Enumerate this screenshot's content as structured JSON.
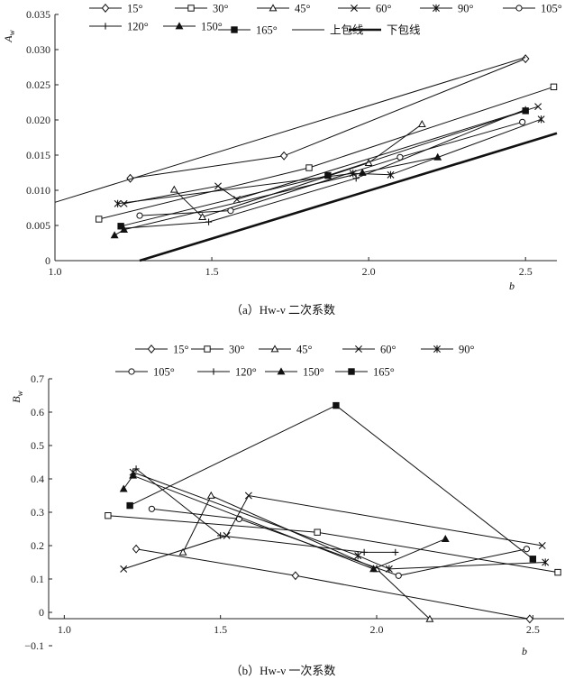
{
  "chart_data": [
    {
      "type": "line",
      "caption": "（a）Hw-ν 二次系数",
      "ylabel": "Aw",
      "xlabel": "b",
      "xlim": [
        1.0,
        2.6
      ],
      "ylim": [
        0,
        0.035
      ],
      "xticks": [
        "1.0",
        "1.5",
        "2.0",
        "2.5"
      ],
      "yticks": [
        "0",
        "0.005",
        "0.010",
        "0.015",
        "0.020",
        "0.025",
        "0.030",
        "0.035"
      ],
      "series": [
        {
          "name": "15°",
          "marker": "diamond",
          "points": [
            [
              1.24,
              0.0117
            ],
            [
              1.73,
              0.0149
            ],
            [
              2.5,
              0.0287
            ]
          ]
        },
        {
          "name": "30°",
          "marker": "square",
          "points": [
            [
              1.14,
              0.0059
            ],
            [
              1.81,
              0.0132
            ],
            [
              2.59,
              0.0247
            ]
          ]
        },
        {
          "name": "45°",
          "marker": "triangle",
          "points": [
            [
              1.38,
              0.0101
            ],
            [
              1.47,
              0.0062
            ],
            [
              2.0,
              0.0139
            ],
            [
              2.17,
              0.0194
            ]
          ]
        },
        {
          "name": "60°",
          "marker": "x",
          "points": [
            [
              1.22,
              0.0081
            ],
            [
              1.52,
              0.0106
            ],
            [
              1.58,
              0.0087
            ],
            [
              2.54,
              0.0219
            ]
          ]
        },
        {
          "name": "90°",
          "marker": "asterisk",
          "points": [
            [
              1.2,
              0.0081
            ],
            [
              1.95,
              0.0124
            ],
            [
              2.07,
              0.0122
            ],
            [
              2.55,
              0.0201
            ]
          ]
        },
        {
          "name": "105°",
          "marker": "circle",
          "points": [
            [
              1.27,
              0.0064
            ],
            [
              1.56,
              0.0071
            ],
            [
              2.1,
              0.0147
            ],
            [
              2.49,
              0.0197
            ]
          ]
        },
        {
          "name": "120°",
          "marker": "plus",
          "points": [
            [
              1.22,
              0.0046
            ],
            [
              1.49,
              0.0055
            ],
            [
              1.96,
              0.0117
            ],
            [
              2.5,
              0.0215
            ]
          ]
        },
        {
          "name": "150°",
          "marker": "triangle-filled",
          "points": [
            [
              1.19,
              0.0036
            ],
            [
              1.22,
              0.0044
            ],
            [
              1.98,
              0.0125
            ],
            [
              2.22,
              0.0147
            ]
          ]
        },
        {
          "name": "165°",
          "marker": "square-filled",
          "points": [
            [
              1.21,
              0.0049
            ],
            [
              1.87,
              0.0121
            ],
            [
              2.5,
              0.0213
            ]
          ]
        },
        {
          "name": "上包线",
          "marker": "none",
          "style": "thin",
          "points": [
            [
              1.0,
              0.0083
            ],
            [
              2.5,
              0.0289
            ]
          ]
        },
        {
          "name": "下包线",
          "marker": "none",
          "style": "thick",
          "points": [
            [
              1.27,
              0.0
            ],
            [
              2.6,
              0.0181
            ]
          ]
        }
      ]
    },
    {
      "type": "line",
      "caption": "（b）Hw-ν 一次系数",
      "ylabel": "Bw",
      "xlabel": "b",
      "xlim": [
        0.95,
        2.6
      ],
      "ylim": [
        -0.1,
        0.7
      ],
      "xticks": [
        "1.0",
        "1.5",
        "2.0",
        "2.5"
      ],
      "yticks": [
        "−0.1",
        "0",
        "0.1",
        "0.2",
        "0.3",
        "0.4",
        "0.5",
        "0.6",
        "0.7"
      ],
      "series": [
        {
          "name": "15°",
          "marker": "diamond",
          "points": [
            [
              1.23,
              0.19
            ],
            [
              1.74,
              0.11
            ],
            [
              2.49,
              -0.02
            ]
          ]
        },
        {
          "name": "30°",
          "marker": "square",
          "points": [
            [
              1.14,
              0.29
            ],
            [
              1.81,
              0.24
            ],
            [
              2.58,
              0.12
            ]
          ]
        },
        {
          "name": "45°",
          "marker": "triangle",
          "points": [
            [
              1.38,
              0.18
            ],
            [
              1.47,
              0.35
            ],
            [
              2.0,
              0.13
            ],
            [
              2.17,
              -0.02
            ]
          ]
        },
        {
          "name": "60°",
          "marker": "x",
          "points": [
            [
              1.19,
              0.13
            ],
            [
              1.52,
              0.23
            ],
            [
              1.59,
              0.35
            ],
            [
              2.53,
              0.2
            ]
          ]
        },
        {
          "name": "90°",
          "marker": "asterisk",
          "points": [
            [
              1.22,
              0.42
            ],
            [
              1.94,
              0.17
            ],
            [
              2.04,
              0.13
            ],
            [
              2.54,
              0.15
            ]
          ]
        },
        {
          "name": "105°",
          "marker": "circle",
          "points": [
            [
              1.28,
              0.31
            ],
            [
              1.56,
              0.28
            ],
            [
              2.07,
              0.11
            ],
            [
              2.48,
              0.19
            ]
          ]
        },
        {
          "name": "120°",
          "marker": "plus",
          "points": [
            [
              1.23,
              0.43
            ],
            [
              1.5,
              0.23
            ],
            [
              1.96,
              0.18
            ],
            [
              2.06,
              0.18
            ]
          ]
        },
        {
          "name": "150°",
          "marker": "triangle-filled",
          "points": [
            [
              1.19,
              0.37
            ],
            [
              1.22,
              0.41
            ],
            [
              1.99,
              0.13
            ],
            [
              2.22,
              0.22
            ]
          ]
        },
        {
          "name": "165°",
          "marker": "square-filled",
          "points": [
            [
              1.21,
              0.32
            ],
            [
              1.87,
              0.62
            ],
            [
              2.5,
              0.16
            ]
          ]
        }
      ]
    }
  ]
}
